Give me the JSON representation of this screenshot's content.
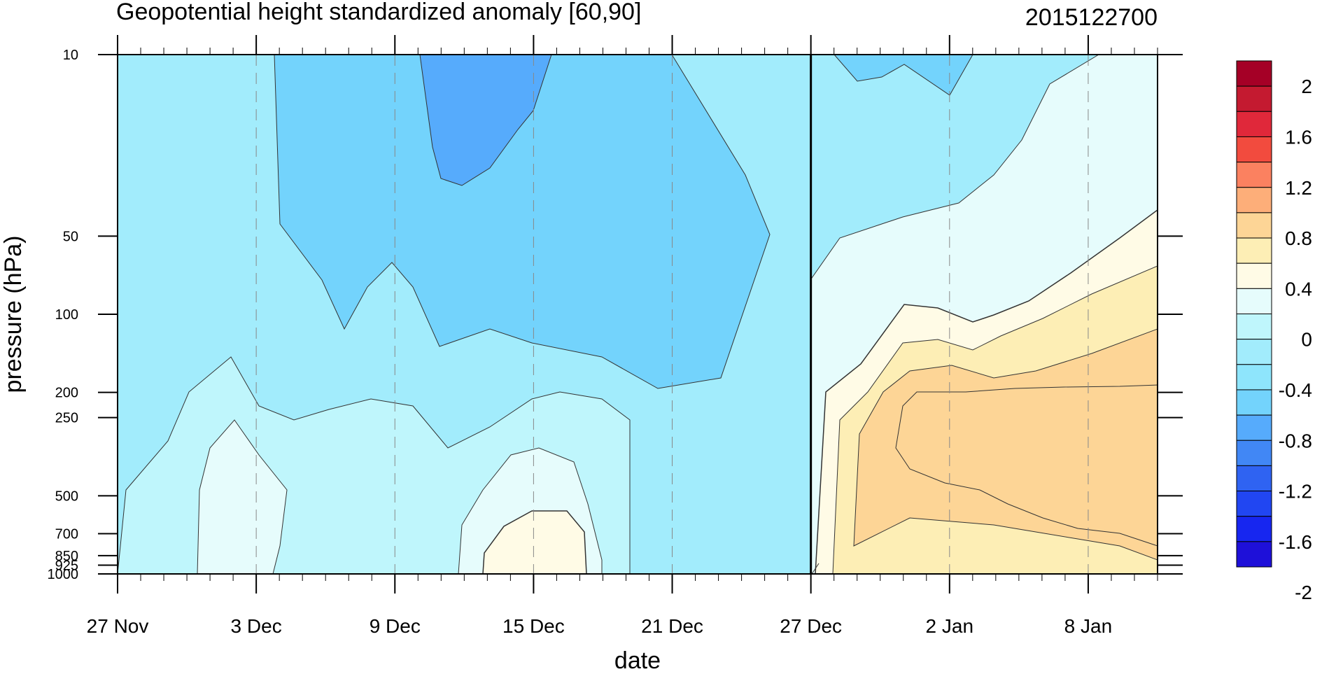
{
  "chart_data": {
    "type": "heatmap",
    "title": "Geopotential height standardized anomaly [60,90]",
    "subtitle_right": "2015122700",
    "xlabel": "date",
    "ylabel": "pressure (hPa)",
    "x_ticks": [
      {
        "label": "27 Nov",
        "day": 0
      },
      {
        "label": "3 Dec",
        "day": 6
      },
      {
        "label": "9 Dec",
        "day": 12
      },
      {
        "label": "15 Dec",
        "day": 18
      },
      {
        "label": "21 Dec",
        "day": 24
      },
      {
        "label": "27 Dec",
        "day": 30
      },
      {
        "label": "2 Jan",
        "day": 36
      },
      {
        "label": "8 Jan",
        "day": 42
      }
    ],
    "x_range_days": [
      0,
      45
    ],
    "marker_day": 30,
    "y_scale": "log",
    "y_reversed": true,
    "y_range": [
      1000,
      10
    ],
    "y_ticks": [
      "10",
      "50",
      "100",
      "200",
      "250",
      "500",
      "700",
      "850",
      "925",
      "1000"
    ],
    "colorbar": {
      "labels": [
        "2",
        "1.6",
        "1.2",
        "0.8",
        "0.4",
        "0",
        "-0.4",
        "-0.8",
        "-1.2",
        "-1.6",
        "-2"
      ],
      "colors_top_to_bottom": [
        "#a50026",
        "#c41a30",
        "#e0283a",
        "#f24b3e",
        "#fb8160",
        "#fdae79",
        "#fdd596",
        "#fdeeb5",
        "#fffbe6",
        "#e6fcfc",
        "#bff6fc",
        "#a2ecfc",
        "#8ee5fc",
        "#73d3fc",
        "#56abfc",
        "#4187f5",
        "#2f63f2",
        "#2146f2",
        "#1726f0",
        "#1e10d9"
      ]
    },
    "anomaly_levels": [
      {
        "level": "top (~10 hPa)",
        "period": "27 Nov–26 Dec",
        "value_range": "-0.4 to -1.2"
      },
      {
        "level": "mid (~100 hPa)",
        "period": "9 Dec–24 Dec",
        "value_range": "-0.8 to -1.0"
      },
      {
        "level": "low (~700 hPa)",
        "period": "13 Dec–17 Dec",
        "value_range": "0 to 0.2"
      },
      {
        "level": "mid-low (200–700 hPa)",
        "period": "28 Dec–11 Jan",
        "value_range": "0.2 to 0.8"
      }
    ]
  }
}
